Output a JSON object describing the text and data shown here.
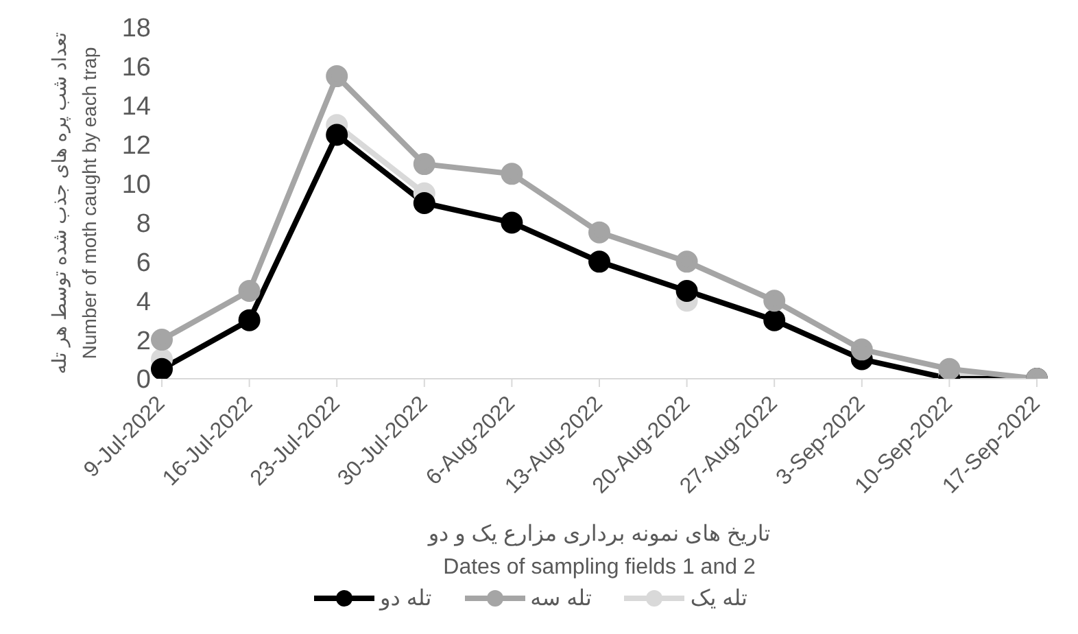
{
  "chart_data": {
    "type": "line",
    "xlabel": "تاریخ های نمونه برداری مزارع یک و دو\nDates of sampling fields 1 and 2",
    "ylabel": "تعداد شب پره های جذب شده توسط هر تله\nNumber of moth caught by each trap",
    "categories": [
      "9-Jul-2022",
      "16-Jul-2022",
      "23-Jul-2022",
      "30-Jul-2022",
      "6-Aug-2022",
      "13-Aug-2022",
      "20-Aug-2022",
      "27-Aug-2022",
      "3-Sep-2022",
      "10-Sep-2022",
      "17-Sep-2022"
    ],
    "series": [
      {
        "name": "تله یک",
        "color": "#d9d9d9",
        "values": [
          1,
          null,
          13,
          9.5,
          null,
          null,
          4,
          null,
          null,
          0.2,
          0
        ]
      },
      {
        "name": "تله دو",
        "color": "#000000",
        "values": [
          0.5,
          3,
          12.5,
          9,
          8,
          6,
          4.5,
          3,
          1,
          0,
          0
        ]
      },
      {
        "name": "تله سه",
        "color": "#a5a5a5",
        "values": [
          2,
          4.5,
          15.5,
          11,
          10.5,
          7.5,
          6,
          4,
          1.5,
          0.5,
          0
        ]
      }
    ],
    "ylim": [
      0,
      18
    ],
    "yticks": [
      0,
      2,
      4,
      6,
      8,
      10,
      12,
      14,
      16,
      18
    ],
    "grid": false,
    "legend": "bottom",
    "marker": "circle",
    "line_style": "solid"
  }
}
